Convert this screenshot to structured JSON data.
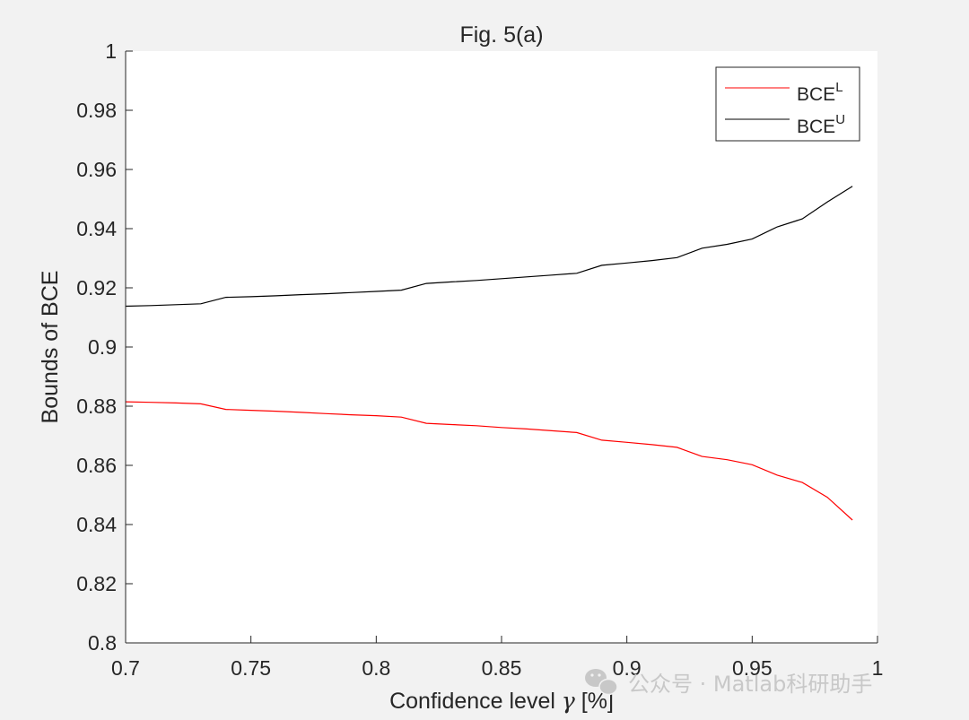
{
  "chart_data": {
    "type": "line",
    "title": "Fig. 5(a)",
    "xlabel_prefix": "Confidence level ",
    "xlabel_symbol": "γ",
    "xlabel_suffix": " [%]",
    "ylabel": "Bounds of BCE",
    "xlim": [
      0.7,
      1.0
    ],
    "ylim": [
      0.8,
      1.0
    ],
    "xticks": [
      "0.7",
      "0.75",
      "0.8",
      "0.85",
      "0.9",
      "0.95",
      "1"
    ],
    "yticks": [
      "0.8",
      "0.82",
      "0.84",
      "0.86",
      "0.88",
      "0.9",
      "0.92",
      "0.94",
      "0.96",
      "0.98",
      "1"
    ],
    "grid": false,
    "legend_position": "top-right",
    "x": [
      0.7,
      0.71,
      0.72,
      0.73,
      0.74,
      0.75,
      0.76,
      0.77,
      0.78,
      0.79,
      0.8,
      0.81,
      0.82,
      0.83,
      0.84,
      0.85,
      0.86,
      0.87,
      0.88,
      0.89,
      0.9,
      0.91,
      0.92,
      0.93,
      0.94,
      0.95,
      0.96,
      0.97,
      0.98,
      0.99
    ],
    "series": [
      {
        "name_base": "BCE",
        "name_sup": "L",
        "color": "#ff0000",
        "values": [
          0.8815,
          0.8813,
          0.8811,
          0.8808,
          0.8789,
          0.8786,
          0.8783,
          0.8779,
          0.8775,
          0.8771,
          0.8768,
          0.8763,
          0.8742,
          0.8738,
          0.8734,
          0.8728,
          0.8723,
          0.8717,
          0.8711,
          0.8685,
          0.8678,
          0.867,
          0.8661,
          0.863,
          0.8619,
          0.8602,
          0.8567,
          0.8542,
          0.8492,
          0.8415
        ]
      },
      {
        "name_base": "BCE",
        "name_sup": "U",
        "color": "#000000",
        "values": [
          0.9138,
          0.914,
          0.9143,
          0.9146,
          0.9168,
          0.917,
          0.9173,
          0.9177,
          0.918,
          0.9184,
          0.9188,
          0.9192,
          0.9215,
          0.922,
          0.9225,
          0.9231,
          0.9237,
          0.9243,
          0.9249,
          0.9276,
          0.9284,
          0.9292,
          0.9302,
          0.9334,
          0.9347,
          0.9365,
          0.9406,
          0.9433,
          0.949,
          0.9543
        ]
      }
    ]
  },
  "watermark": {
    "icon": "wechat-icon",
    "text": "公众号 · Matlab科研助手"
  }
}
